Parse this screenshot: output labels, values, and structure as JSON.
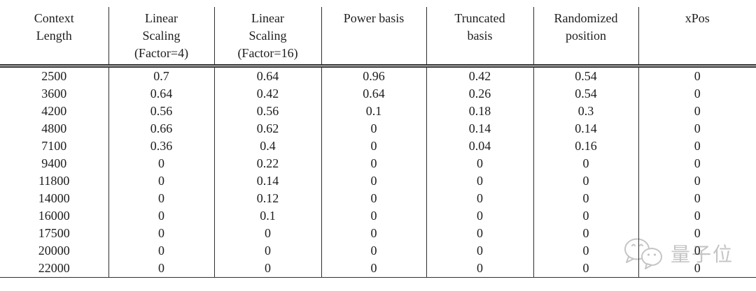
{
  "chart_data": {
    "type": "table",
    "title": "",
    "columns": [
      "Context Length",
      "Linear Scaling (Factor=4)",
      "Linear Scaling (Factor=16)",
      "Power basis",
      "Truncated basis",
      "Randomized position",
      "xPos"
    ],
    "rows": [
      [
        2500,
        0.7,
        0.64,
        0.96,
        0.42,
        0.54,
        0
      ],
      [
        3600,
        0.64,
        0.42,
        0.64,
        0.26,
        0.54,
        0
      ],
      [
        4200,
        0.56,
        0.56,
        0.1,
        0.18,
        0.3,
        0
      ],
      [
        4800,
        0.66,
        0.62,
        0,
        0.14,
        0.14,
        0
      ],
      [
        7100,
        0.36,
        0.4,
        0,
        0.04,
        0.16,
        0
      ],
      [
        9400,
        0,
        0.22,
        0,
        0,
        0,
        0
      ],
      [
        11800,
        0,
        0.14,
        0,
        0,
        0,
        0
      ],
      [
        14000,
        0,
        0.12,
        0,
        0,
        0,
        0
      ],
      [
        16000,
        0,
        0.1,
        0,
        0,
        0,
        0
      ],
      [
        17500,
        0,
        0,
        0,
        0,
        0,
        0
      ],
      [
        20000,
        0,
        0,
        0,
        0,
        0,
        0
      ],
      [
        22000,
        0,
        0,
        0,
        0,
        0,
        0
      ]
    ]
  },
  "table": {
    "header_lines": [
      [
        "Context",
        "Length"
      ],
      [
        "Linear",
        "Scaling",
        "(Factor=4)"
      ],
      [
        "Linear",
        "Scaling",
        "(Factor=16)"
      ],
      [
        "Power basis"
      ],
      [
        "Truncated",
        "basis"
      ],
      [
        "Randomized",
        "position"
      ],
      [
        "xPos"
      ]
    ],
    "rows": [
      [
        "2500",
        "0.7",
        "0.64",
        "0.96",
        "0.42",
        "0.54",
        "0"
      ],
      [
        "3600",
        "0.64",
        "0.42",
        "0.64",
        "0.26",
        "0.54",
        "0"
      ],
      [
        "4200",
        "0.56",
        "0.56",
        "0.1",
        "0.18",
        "0.3",
        "0"
      ],
      [
        "4800",
        "0.66",
        "0.62",
        "0",
        "0.14",
        "0.14",
        "0"
      ],
      [
        "7100",
        "0.36",
        "0.4",
        "0",
        "0.04",
        "0.16",
        "0"
      ],
      [
        "9400",
        "0",
        "0.22",
        "0",
        "0",
        "0",
        "0"
      ],
      [
        "11800",
        "0",
        "0.14",
        "0",
        "0",
        "0",
        "0"
      ],
      [
        "14000",
        "0",
        "0.12",
        "0",
        "0",
        "0",
        "0"
      ],
      [
        "16000",
        "0",
        "0.1",
        "0",
        "0",
        "0",
        "0"
      ],
      [
        "17500",
        "0",
        "0",
        "0",
        "0",
        "0",
        "0"
      ],
      [
        "20000",
        "0",
        "0",
        "0",
        "0",
        "0",
        "0"
      ],
      [
        "22000",
        "0",
        "0",
        "0",
        "0",
        "0",
        "0"
      ]
    ]
  },
  "watermark": {
    "text": "量子位",
    "color": "#c5c5c5"
  },
  "colors": {
    "text": "#1d1d1d",
    "rule": "#2e2e2e",
    "background": "#ffffff",
    "watermark": "#c5c5c5"
  }
}
